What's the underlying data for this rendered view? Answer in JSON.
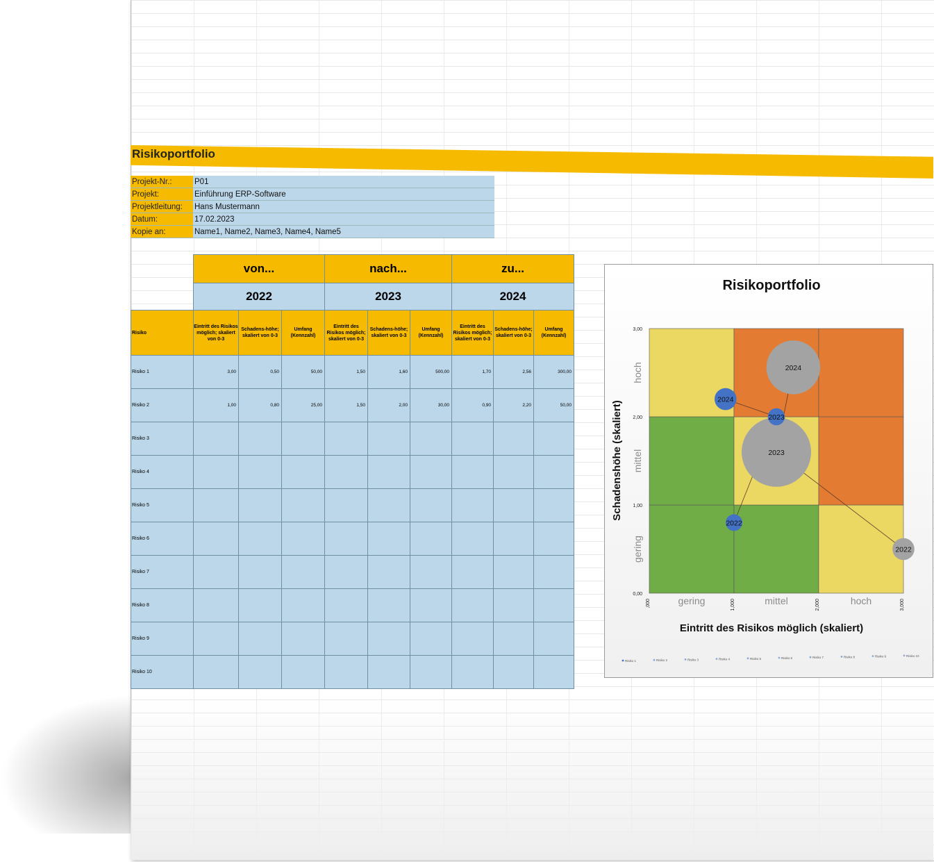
{
  "title": "Risikoportfolio",
  "info": [
    {
      "label": "Projekt-Nr.:",
      "value": "P01"
    },
    {
      "label": "Projekt:",
      "value": "Einführung ERP-Software"
    },
    {
      "label": "Projektleitung:",
      "value": "Hans Mustermann"
    },
    {
      "label": "Datum:",
      "value": "17.02.2023"
    },
    {
      "label": "Kopie an:",
      "value": "Name1, Name2, Name3, Name4, Name5"
    }
  ],
  "table": {
    "phases": [
      "von...",
      "nach...",
      "zu..."
    ],
    "years": [
      "2022",
      "2023",
      "2024"
    ],
    "risk_header": "Risiko",
    "col_headers": [
      "Eintritt des Risikos möglich; skaliert von 0-3",
      "Schadens-höhe; skaliert von 0-3",
      "Umfang (Kennzahl)"
    ],
    "rows": [
      {
        "name": "Risiko 1",
        "vals": [
          "3,00",
          "0,50",
          "50,00",
          "1,50",
          "1,60",
          "500,00",
          "1,70",
          "2,56",
          "300,00"
        ]
      },
      {
        "name": "Risiko 2",
        "vals": [
          "1,00",
          "0,80",
          "25,00",
          "1,50",
          "2,00",
          "30,00",
          "0,90",
          "2,20",
          "50,00"
        ]
      },
      {
        "name": "Risiko 3",
        "vals": [
          "",
          "",
          "",
          "",
          "",
          "",
          "",
          "",
          ""
        ]
      },
      {
        "name": "Risiko 4",
        "vals": [
          "",
          "",
          "",
          "",
          "",
          "",
          "",
          "",
          ""
        ]
      },
      {
        "name": "Risiko 5",
        "vals": [
          "",
          "",
          "",
          "",
          "",
          "",
          "",
          "",
          ""
        ]
      },
      {
        "name": "Risiko 6",
        "vals": [
          "",
          "",
          "",
          "",
          "",
          "",
          "",
          "",
          ""
        ]
      },
      {
        "name": "Risiko 7",
        "vals": [
          "",
          "",
          "",
          "",
          "",
          "",
          "",
          "",
          ""
        ]
      },
      {
        "name": "Risiko 8",
        "vals": [
          "",
          "",
          "",
          "",
          "",
          "",
          "",
          "",
          ""
        ]
      },
      {
        "name": "Risiko 9",
        "vals": [
          "",
          "",
          "",
          "",
          "",
          "",
          "",
          "",
          ""
        ]
      },
      {
        "name": "Risiko 10",
        "vals": [
          "",
          "",
          "",
          "",
          "",
          "",
          "",
          "",
          ""
        ]
      }
    ]
  },
  "chart_data": {
    "type": "scatter",
    "title": "Risikoportfolio",
    "xlabel": "Eintritt des Risikos möglich (skaliert)",
    "ylabel": "Schadenshöhe (skaliert)",
    "xlim": [
      0,
      3
    ],
    "ylim": [
      0,
      3
    ],
    "x_ticks": [
      ",000",
      "1,000",
      "2,000",
      "3,000"
    ],
    "y_ticks": [
      "0,00",
      "1,00",
      "2,00",
      "3,00"
    ],
    "x_zone_labels": [
      "gering",
      "mittel",
      "hoch"
    ],
    "y_zone_labels": [
      "gering",
      "mittel",
      "hoch"
    ],
    "zone_colors": {
      "green": "#70ad47",
      "yellow": "#ebd862",
      "orange": "#e37c32"
    },
    "zones": [
      [
        "green",
        "green",
        "yellow"
      ],
      [
        "green",
        "yellow",
        "orange"
      ],
      [
        "yellow",
        "orange",
        "orange"
      ]
    ],
    "series": [
      {
        "name": "Risiko 1",
        "color": "#a3a3a3",
        "points": [
          {
            "x": 3.0,
            "y": 0.5,
            "size": 50,
            "label": "2022"
          },
          {
            "x": 1.5,
            "y": 1.6,
            "size": 500,
            "label": "2023"
          },
          {
            "x": 1.7,
            "y": 2.56,
            "size": 300,
            "label": "2024"
          }
        ]
      },
      {
        "name": "Risiko 2",
        "color": "#4472c4",
        "points": [
          {
            "x": 1.0,
            "y": 0.8,
            "size": 25,
            "label": "2022"
          },
          {
            "x": 1.5,
            "y": 2.0,
            "size": 30,
            "label": "2023"
          },
          {
            "x": 0.9,
            "y": 2.2,
            "size": 50,
            "label": "2024"
          }
        ]
      }
    ],
    "legend": [
      "Risiko 1",
      "Risiko 2",
      "Risiko 3",
      "Risiko 4",
      "Risiko 5",
      "Risiko 6",
      "Risiko 7",
      "Risiko 8",
      "Risiko 9",
      "Risiko 10"
    ],
    "legend_position": "bottom"
  }
}
